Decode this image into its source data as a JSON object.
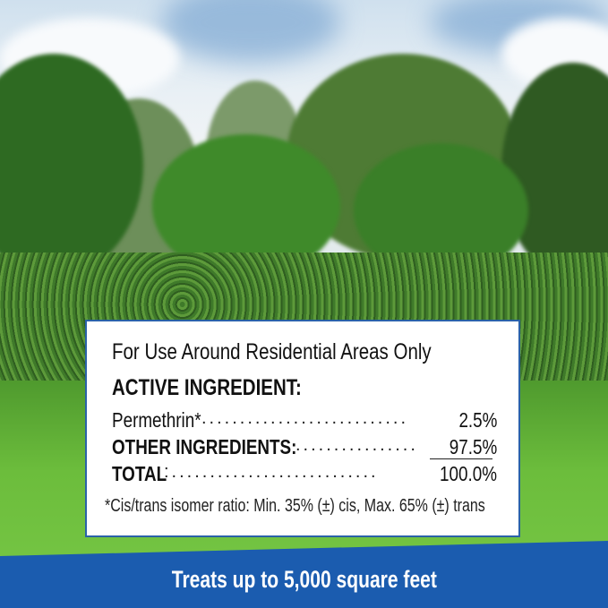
{
  "label": {
    "title": "For Use Around Residential Areas Only",
    "active_heading": "ACTIVE INGREDIENT:",
    "rows": [
      {
        "label": "Permethrin*",
        "dots": "...........................",
        "value": "2.5%"
      },
      {
        "label": "OTHER INGREDIENTS:",
        "dots": "................",
        "value": "97.5%"
      },
      {
        "label": "TOTAL",
        "dots": ":...........................",
        "value": "100.0%"
      }
    ],
    "footnote": "*Cis/trans isomer ratio: Min. 35% (±) cis, Max. 65% (±) trans"
  },
  "banner": {
    "text": "Treats up to 5,000 square feet",
    "color": "#1b5caf"
  },
  "colors": {
    "border": "#2a62a8",
    "grass": "#6cbd3c",
    "hedge": "#3f7a2a"
  }
}
